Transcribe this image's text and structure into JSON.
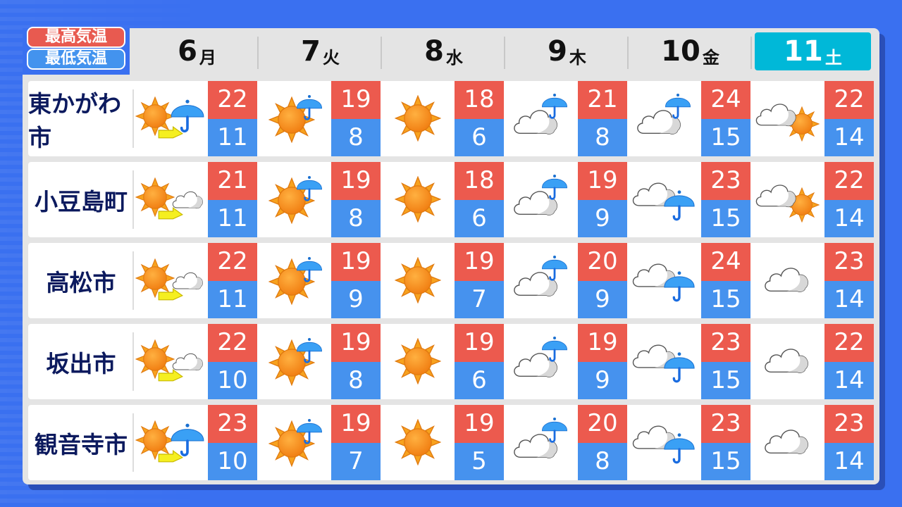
{
  "legend": {
    "high": "最高気温",
    "low": "最低気温"
  },
  "colors": {
    "high": "#ec5a4e",
    "low": "#4692ee",
    "today": "#00b8d8",
    "background": "#3a70f0"
  },
  "days": [
    {
      "date": "6",
      "weekday": "月",
      "today": false
    },
    {
      "date": "7",
      "weekday": "火",
      "today": false
    },
    {
      "date": "8",
      "weekday": "水",
      "today": false
    },
    {
      "date": "9",
      "weekday": "木",
      "today": false
    },
    {
      "date": "10",
      "weekday": "金",
      "today": false
    },
    {
      "date": "11",
      "weekday": "土",
      "today": true
    }
  ],
  "rows": [
    {
      "city": "東かがわ市",
      "forecast": [
        {
          "weather": "sun-then-rain",
          "high": "22",
          "low": "11"
        },
        {
          "weather": "sun-chance-rain",
          "high": "19",
          "low": "8"
        },
        {
          "weather": "sun",
          "high": "18",
          "low": "6"
        },
        {
          "weather": "cloud-chance-rain",
          "high": "21",
          "low": "8"
        },
        {
          "weather": "cloud-chance-rain",
          "high": "24",
          "low": "15"
        },
        {
          "weather": "cloud-chance-sun",
          "high": "22",
          "low": "14"
        }
      ]
    },
    {
      "city": "小豆島町",
      "forecast": [
        {
          "weather": "sun-then-cloud",
          "high": "21",
          "low": "11"
        },
        {
          "weather": "sun-chance-rain",
          "high": "19",
          "low": "8"
        },
        {
          "weather": "sun",
          "high": "18",
          "low": "6"
        },
        {
          "weather": "cloud-chance-rain",
          "high": "19",
          "low": "9"
        },
        {
          "weather": "cloud-and-rain",
          "high": "23",
          "low": "15"
        },
        {
          "weather": "cloud-chance-sun",
          "high": "22",
          "low": "14"
        }
      ]
    },
    {
      "city": "高松市",
      "forecast": [
        {
          "weather": "sun-then-cloud",
          "high": "22",
          "low": "11"
        },
        {
          "weather": "sun-chance-rain",
          "high": "19",
          "low": "9"
        },
        {
          "weather": "sun",
          "high": "19",
          "low": "7"
        },
        {
          "weather": "cloud-chance-rain",
          "high": "20",
          "low": "9"
        },
        {
          "weather": "cloud-and-rain",
          "high": "24",
          "low": "15"
        },
        {
          "weather": "cloud",
          "high": "23",
          "low": "14"
        }
      ]
    },
    {
      "city": "坂出市",
      "forecast": [
        {
          "weather": "sun-then-cloud",
          "high": "22",
          "low": "10"
        },
        {
          "weather": "sun-chance-rain",
          "high": "19",
          "low": "8"
        },
        {
          "weather": "sun",
          "high": "19",
          "low": "6"
        },
        {
          "weather": "cloud-chance-rain",
          "high": "19",
          "low": "9"
        },
        {
          "weather": "cloud-and-rain",
          "high": "23",
          "low": "15"
        },
        {
          "weather": "cloud",
          "high": "22",
          "low": "14"
        }
      ]
    },
    {
      "city": "観音寺市",
      "forecast": [
        {
          "weather": "sun-then-rain",
          "high": "23",
          "low": "10"
        },
        {
          "weather": "sun-chance-rain",
          "high": "19",
          "low": "7"
        },
        {
          "weather": "sun",
          "high": "19",
          "low": "5"
        },
        {
          "weather": "cloud-chance-rain",
          "high": "20",
          "low": "8"
        },
        {
          "weather": "cloud-and-rain",
          "high": "23",
          "low": "15"
        },
        {
          "weather": "cloud",
          "high": "23",
          "low": "14"
        }
      ]
    }
  ]
}
